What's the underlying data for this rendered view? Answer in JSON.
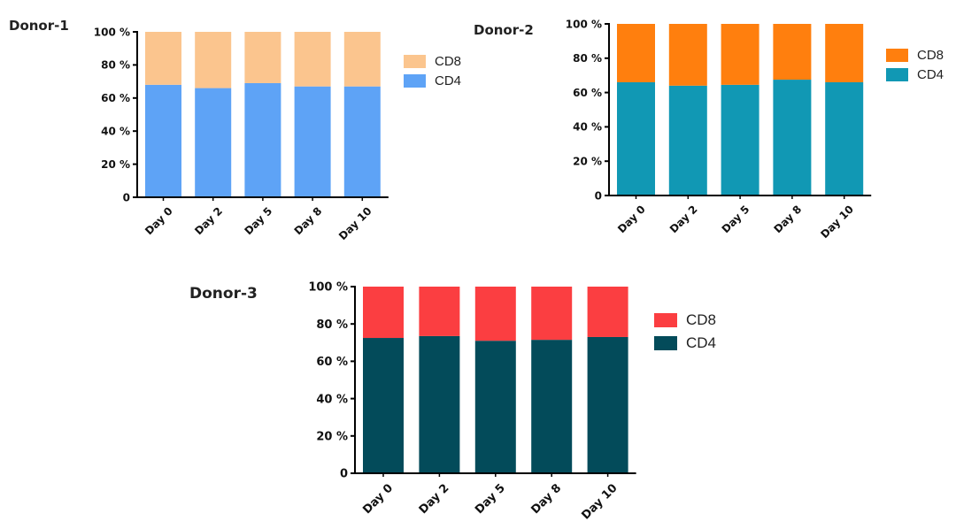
{
  "chart_data": [
    {
      "type": "bar",
      "stacked": true,
      "title": "Donor-1",
      "categories": [
        "Day 0",
        "Day 2",
        "Day 5",
        "Day 8",
        "Day 10"
      ],
      "series": [
        {
          "name": "CD4",
          "values": [
            68,
            66,
            69,
            67,
            67
          ],
          "color": "#5ea3f6"
        },
        {
          "name": "CD8",
          "values": [
            32,
            34,
            31,
            33,
            33
          ],
          "color": "#fbc58e"
        }
      ],
      "yticks": [
        "0",
        "20 %",
        "40 %",
        "60 %",
        "80 %",
        "100 %"
      ],
      "ylim": [
        0,
        100
      ],
      "legend_order": [
        "CD8",
        "CD4"
      ],
      "legend_position": "right"
    },
    {
      "type": "bar",
      "stacked": true,
      "title": "Donor-2",
      "categories": [
        "Day 0",
        "Day 2",
        "Day 5",
        "Day 8",
        "Day 10"
      ],
      "series": [
        {
          "name": "CD4",
          "values": [
            66,
            64,
            64.5,
            67.5,
            66
          ],
          "color": "#1198b4"
        },
        {
          "name": "CD8",
          "values": [
            34,
            36,
            35.5,
            32.5,
            34
          ],
          "color": "#ff7f0e"
        }
      ],
      "yticks": [
        "0",
        "20 %",
        "40 %",
        "60 %",
        "80 %",
        "100 %"
      ],
      "ylim": [
        0,
        100
      ],
      "legend_order": [
        "CD8",
        "CD4"
      ],
      "legend_position": "right"
    },
    {
      "type": "bar",
      "stacked": true,
      "title": "Donor-3",
      "categories": [
        "Day 0",
        "Day 2",
        "Day 5",
        "Day 8",
        "Day 10"
      ],
      "series": [
        {
          "name": "CD4",
          "values": [
            72.5,
            73.5,
            71,
            71.5,
            73
          ],
          "color": "#034b5a"
        },
        {
          "name": "CD8",
          "values": [
            27.5,
            26.5,
            29,
            28.5,
            27
          ],
          "color": "#fb3e41"
        }
      ],
      "yticks": [
        "0",
        "20 %",
        "40 %",
        "60 %",
        "80 %",
        "100 %"
      ],
      "ylim": [
        0,
        100
      ],
      "legend_order": [
        "CD8",
        "CD4"
      ],
      "legend_position": "right"
    }
  ]
}
